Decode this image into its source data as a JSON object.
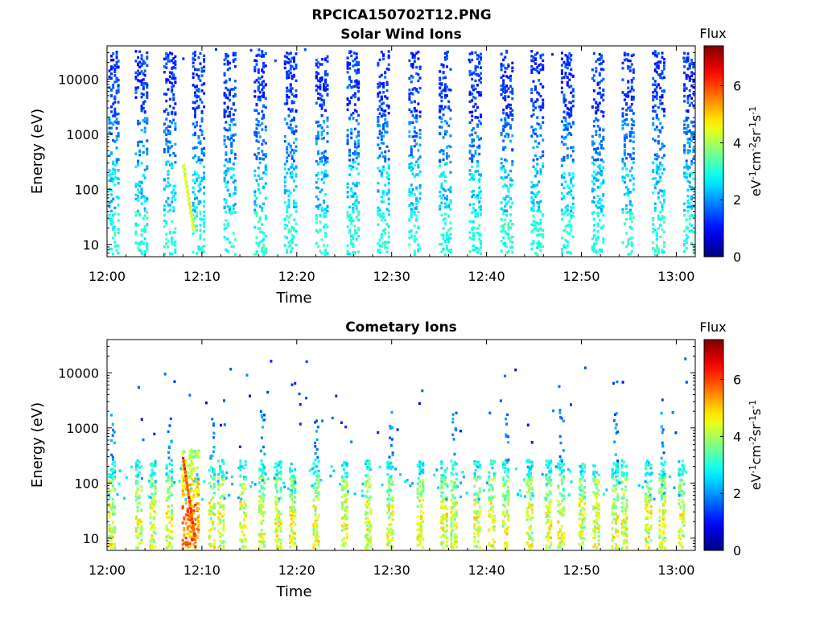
{
  "figure": {
    "title": "RPCICA150702T12.PNG"
  },
  "chart_data": [
    {
      "type": "heatmap",
      "title": "Solar Wind Ions",
      "xlabel": "Time",
      "ylabel": "Energy (eV)",
      "x_ticks": [
        "12:00",
        "12:10",
        "12:20",
        "12:30",
        "12:40",
        "12:50",
        "13:00"
      ],
      "y_ticks": [
        "10",
        "100",
        "1000",
        "10000"
      ],
      "y_scale": "log",
      "xlim": [
        "12:00",
        "13:02"
      ],
      "ylim": [
        6,
        40000
      ],
      "colorbar": {
        "label": "Flux",
        "units": "eV-1cm-2sr-1s-1",
        "ticks": [
          "0",
          "2",
          "4",
          "6"
        ],
        "range": [
          0,
          7.4
        ],
        "colormap": "jet"
      },
      "pattern": "periodic vertical bursts roughly every 3.2 minutes, 10 eV to 30000 eV, flux mostly 1-3, a 4-5 streak near 12:08 around 30-100 eV",
      "burst_times_min": [
        0.5,
        3.5,
        6.5,
        9.5,
        12.8,
        16.0,
        19.2,
        22.5,
        25.8,
        29.0,
        32.3,
        35.5,
        38.7,
        42.0,
        45.2,
        48.4,
        51.6,
        54.8,
        58.0,
        61.3
      ]
    },
    {
      "type": "heatmap",
      "title": "Cometary Ions",
      "xlabel": "Time",
      "ylabel": "Energy (eV)",
      "x_ticks": [
        "12:00",
        "12:10",
        "12:20",
        "12:30",
        "12:40",
        "12:50",
        "13:00"
      ],
      "y_ticks": [
        "10",
        "100",
        "1000",
        "10000"
      ],
      "y_scale": "log",
      "xlim": [
        "12:00",
        "13:02"
      ],
      "ylim": [
        6,
        40000
      ],
      "colorbar": {
        "label": "Flux",
        "units": "eV-1cm-2sr-1s-1",
        "ticks": [
          "0",
          "2",
          "4",
          "6"
        ],
        "range": [
          0,
          7.4
        ],
        "colormap": "jet"
      },
      "pattern": "low-energy ion bursts 6-300 eV with flux 3-6, strongest near 12:08-12:09 (up to about 6.5), sparse high-energy points",
      "burst_times_min": [
        0.5,
        3.3,
        4.8,
        6.5,
        8.2,
        9.0,
        11.0,
        12.0,
        14.3,
        16.3,
        18.0,
        19.5,
        22.0,
        25.0,
        27.5,
        29.8,
        33.0,
        35.5,
        36.5,
        39.0,
        40.5,
        42.0,
        44.5,
        46.5,
        47.8,
        50.0,
        51.5,
        53.5,
        54.5,
        57.0,
        58.5,
        60.5
      ]
    }
  ]
}
